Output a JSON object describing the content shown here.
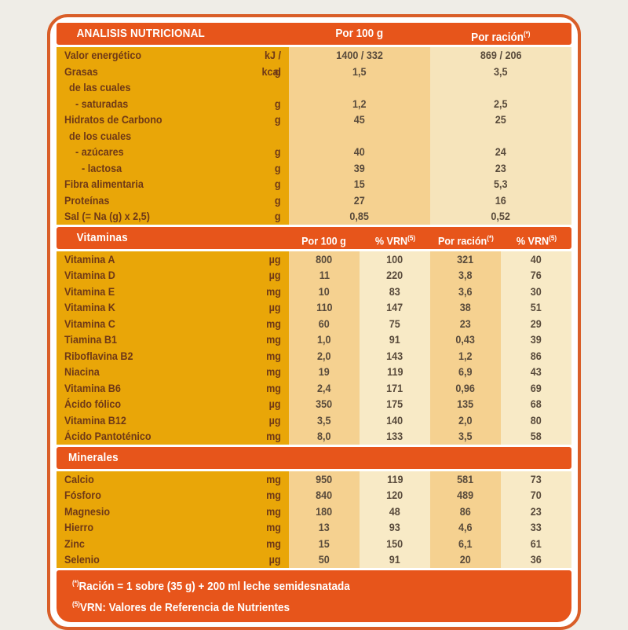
{
  "colors": {
    "page_background": "#efede7",
    "card_border": "#d95e28",
    "bar_orange": "#e7551b",
    "gold": "#e9a608",
    "tan_column": "#f5d190",
    "cream_column": "#f8eac6",
    "label_text": "#6f3917",
    "value_text": "#584a3b",
    "bar_text": "#ffffff"
  },
  "header": {
    "title": "ANALISIS NUTRICIONAL",
    "col_per100": "Por 100 g",
    "col_racion": "Por ración",
    "col_racion_sup": "(*)"
  },
  "nutrition": {
    "rows": [
      {
        "label": "Valor energético",
        "unit": "kJ / kcal",
        "per100": "1400 / 332",
        "racion": "869 / 206",
        "indent": 0
      },
      {
        "label": "Grasas",
        "unit": "g",
        "per100": "1,5",
        "racion": "3,5",
        "indent": 0
      },
      {
        "label": "de las cuales",
        "unit": "",
        "per100": "",
        "racion": "",
        "indent": 1
      },
      {
        "label": "- saturadas",
        "unit": "g",
        "per100": "1,2",
        "racion": "2,5",
        "indent": 2
      },
      {
        "label": "Hidratos de Carbono",
        "unit": "g",
        "per100": "45",
        "racion": "25",
        "indent": 0
      },
      {
        "label": "de los cuales",
        "unit": "",
        "per100": "",
        "racion": "",
        "indent": 1
      },
      {
        "label": "- azúcares",
        "unit": "g",
        "per100": "40",
        "racion": "24",
        "indent": 2
      },
      {
        "label": "- lactosa",
        "unit": "g",
        "per100": "39",
        "racion": "23",
        "indent": 3
      },
      {
        "label": "Fibra alimentaria",
        "unit": "g",
        "per100": "15",
        "racion": "5,3",
        "indent": 0
      },
      {
        "label": "Proteínas",
        "unit": "g",
        "per100": "27",
        "racion": "16",
        "indent": 0
      },
      {
        "label": "Sal (= Na (g) x 2,5)",
        "unit": "g",
        "per100": "0,85",
        "racion": "0,52",
        "indent": 0
      }
    ]
  },
  "vitamins": {
    "title": "Vitaminas",
    "col_headers": [
      {
        "text": "Por 100 g",
        "sup": ""
      },
      {
        "text": "% VRN",
        "sup": "(5)"
      },
      {
        "text": "Por ración",
        "sup": "(*)"
      },
      {
        "text": "% VRN",
        "sup": "(5)"
      }
    ],
    "rows": [
      {
        "label": "Vitamina A",
        "unit": "µg",
        "values": [
          "800",
          "100",
          "321",
          "40"
        ]
      },
      {
        "label": "Vitamina D",
        "unit": "µg",
        "values": [
          "11",
          "220",
          "3,8",
          "76"
        ]
      },
      {
        "label": "Vitamina E",
        "unit": "mg",
        "values": [
          "10",
          "83",
          "3,6",
          "30"
        ]
      },
      {
        "label": "Vitamina K",
        "unit": "µg",
        "values": [
          "110",
          "147",
          "38",
          "51"
        ]
      },
      {
        "label": "Vitamina C",
        "unit": "mg",
        "values": [
          "60",
          "75",
          "23",
          "29"
        ]
      },
      {
        "label": "Tiamina B1",
        "unit": "mg",
        "values": [
          "1,0",
          "91",
          "0,43",
          "39"
        ]
      },
      {
        "label": "Riboflavina B2",
        "unit": "mg",
        "values": [
          "2,0",
          "143",
          "1,2",
          "86"
        ]
      },
      {
        "label": "Niacina",
        "unit": "mg",
        "values": [
          "19",
          "119",
          "6,9",
          "43"
        ]
      },
      {
        "label": "Vitamina B6",
        "unit": "mg",
        "values": [
          "2,4",
          "171",
          "0,96",
          "69"
        ]
      },
      {
        "label": "Ácido fólico",
        "unit": "µg",
        "values": [
          "350",
          "175",
          "135",
          "68"
        ]
      },
      {
        "label": "Vitamina B12",
        "unit": "µg",
        "values": [
          "3,5",
          "140",
          "2,0",
          "80"
        ]
      },
      {
        "label": "Ácido Pantoténico",
        "unit": "mg",
        "values": [
          "8,0",
          "133",
          "3,5",
          "58"
        ]
      }
    ]
  },
  "minerals": {
    "title": "Minerales",
    "rows": [
      {
        "label": "Calcio",
        "unit": "mg",
        "values": [
          "950",
          "119",
          "581",
          "73"
        ]
      },
      {
        "label": "Fósforo",
        "unit": "mg",
        "values": [
          "840",
          "120",
          "489",
          "70"
        ]
      },
      {
        "label": "Magnesio",
        "unit": "mg",
        "values": [
          "180",
          "48",
          "86",
          "23"
        ]
      },
      {
        "label": "Hierro",
        "unit": "mg",
        "values": [
          "13",
          "93",
          "4,6",
          "33"
        ]
      },
      {
        "label": "Zinc",
        "unit": "mg",
        "values": [
          "15",
          "150",
          "6,1",
          "61"
        ]
      },
      {
        "label": "Selenio",
        "unit": "µg",
        "values": [
          "50",
          "91",
          "20",
          "36"
        ]
      }
    ]
  },
  "footer": {
    "line1_sup": "(*)",
    "line1": "Ración = 1 sobre (35 g) + 200 ml leche semidesnatada",
    "line2_sup": "(5)",
    "line2": "VRN: Valores de Referencia de Nutrientes"
  }
}
